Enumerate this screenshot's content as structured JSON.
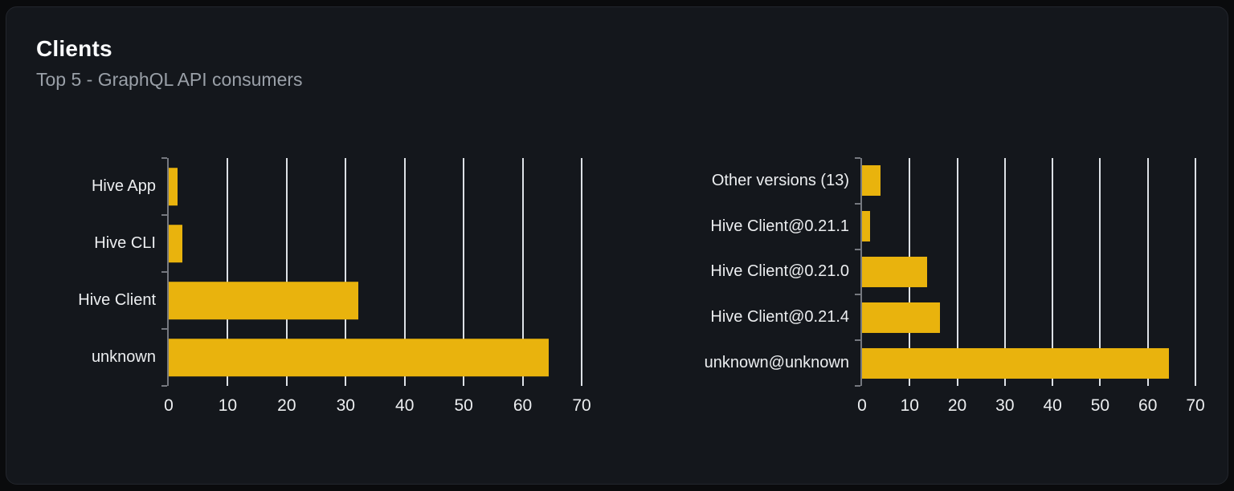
{
  "card": {
    "title": "Clients",
    "subtitle": "Top 5 - GraphQL API consumers"
  },
  "colors": {
    "bar_yellow": "#e9b30d",
    "card_background": "#14171c",
    "page_background": "#0a0b0d",
    "axis_gray": "#75787f",
    "gridline_white": "#dde1e6",
    "title_white": "#fbfcfd",
    "subtitle_gray": "#9aa0a8",
    "label_white": "#eceef0"
  },
  "chart_data": [
    {
      "type": "bar",
      "orientation": "horizontal",
      "categories": [
        "Hive App",
        "Hive CLI",
        "Hive Client",
        "unknown"
      ],
      "values": [
        1.5,
        2.3,
        32.2,
        64.4
      ],
      "xlim": [
        0,
        70
      ],
      "xticks": [
        0,
        10,
        20,
        30,
        40,
        50,
        60,
        70
      ],
      "xlabel": "",
      "ylabel": "",
      "grid": true,
      "legend": false,
      "bar_color": "#e9b30d"
    },
    {
      "type": "bar",
      "orientation": "horizontal",
      "categories": [
        "Other versions (13)",
        "Hive Client@0.21.1",
        "Hive Client@0.21.0",
        "Hive Client@0.21.4",
        "unknown@unknown"
      ],
      "values": [
        3.9,
        1.7,
        13.7,
        16.3,
        64.4
      ],
      "xlim": [
        0,
        70
      ],
      "xticks": [
        0,
        10,
        20,
        30,
        40,
        50,
        60,
        70
      ],
      "xlabel": "",
      "ylabel": "",
      "grid": true,
      "legend": false,
      "bar_color": "#e9b30d"
    }
  ]
}
